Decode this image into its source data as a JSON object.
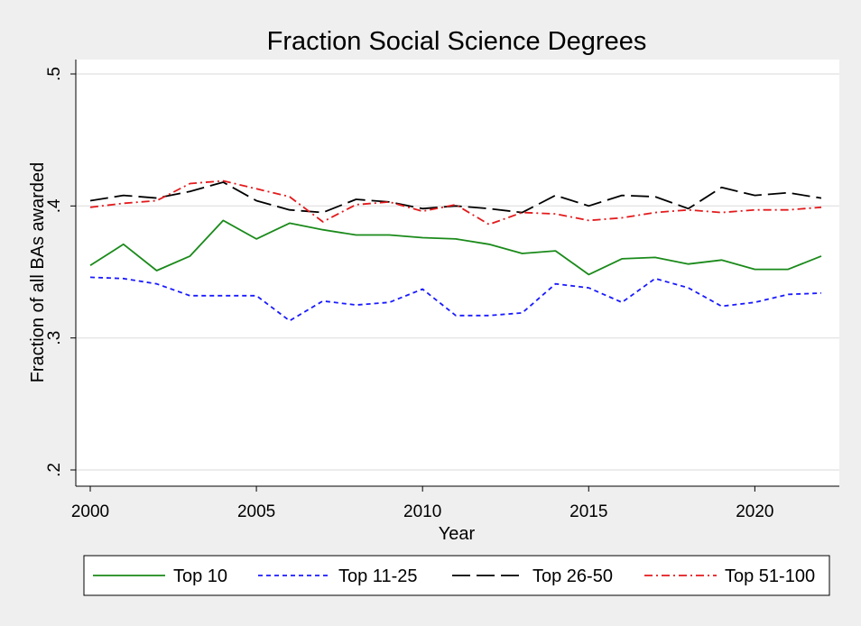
{
  "chart_data": {
    "type": "line",
    "title": "Fraction Social Science Degrees",
    "xlabel": "Year",
    "ylabel": "Fraction of all BAs awarded",
    "xlim": [
      2000,
      2022
    ],
    "ylim": [
      0.2,
      0.5
    ],
    "x_ticks": [
      2000,
      2005,
      2010,
      2015,
      2020
    ],
    "x_tick_labels": [
      "2000",
      "2005",
      "2010",
      "2015",
      "2020"
    ],
    "y_ticks": [
      0.2,
      0.3,
      0.4,
      0.5
    ],
    "y_tick_labels": [
      ".2",
      ".3",
      ".4",
      ".5"
    ],
    "grid": true,
    "legend_position": "bottom",
    "x": [
      2000,
      2001,
      2002,
      2003,
      2004,
      2005,
      2006,
      2007,
      2008,
      2009,
      2010,
      2011,
      2012,
      2013,
      2014,
      2015,
      2016,
      2017,
      2018,
      2019,
      2020,
      2021,
      2022
    ],
    "series": [
      {
        "name": "Top 10",
        "color": "#1a8a1a",
        "dash": "solid",
        "values": [
          0.355,
          0.371,
          0.351,
          0.362,
          0.389,
          0.375,
          0.387,
          0.382,
          0.378,
          0.378,
          0.376,
          0.375,
          0.371,
          0.364,
          0.366,
          0.348,
          0.36,
          0.361,
          0.356,
          0.359,
          0.352,
          0.352,
          0.362
        ]
      },
      {
        "name": "Top 11-25",
        "color": "#1a1aff",
        "dash": "short",
        "values": [
          0.346,
          0.345,
          0.341,
          0.332,
          0.332,
          0.332,
          0.313,
          0.328,
          0.325,
          0.327,
          0.337,
          0.317,
          0.317,
          0.319,
          0.341,
          0.338,
          0.327,
          0.345,
          0.338,
          0.324,
          0.327,
          0.333,
          0.334
        ]
      },
      {
        "name": "Top 26-50",
        "color": "#000000",
        "dash": "long",
        "values": [
          0.404,
          0.408,
          0.406,
          0.411,
          0.418,
          0.404,
          0.397,
          0.395,
          0.405,
          0.403,
          0.398,
          0.4,
          0.398,
          0.395,
          0.408,
          0.4,
          0.408,
          0.407,
          0.398,
          0.414,
          0.408,
          0.41,
          0.406
        ]
      },
      {
        "name": "Top 51-100",
        "color": "#e31a1c",
        "dash": "dashdot",
        "values": [
          0.399,
          0.402,
          0.404,
          0.417,
          0.419,
          0.413,
          0.407,
          0.388,
          0.401,
          0.403,
          0.396,
          0.401,
          0.386,
          0.395,
          0.394,
          0.389,
          0.391,
          0.395,
          0.397,
          0.395,
          0.397,
          0.397,
          0.399
        ]
      }
    ]
  }
}
